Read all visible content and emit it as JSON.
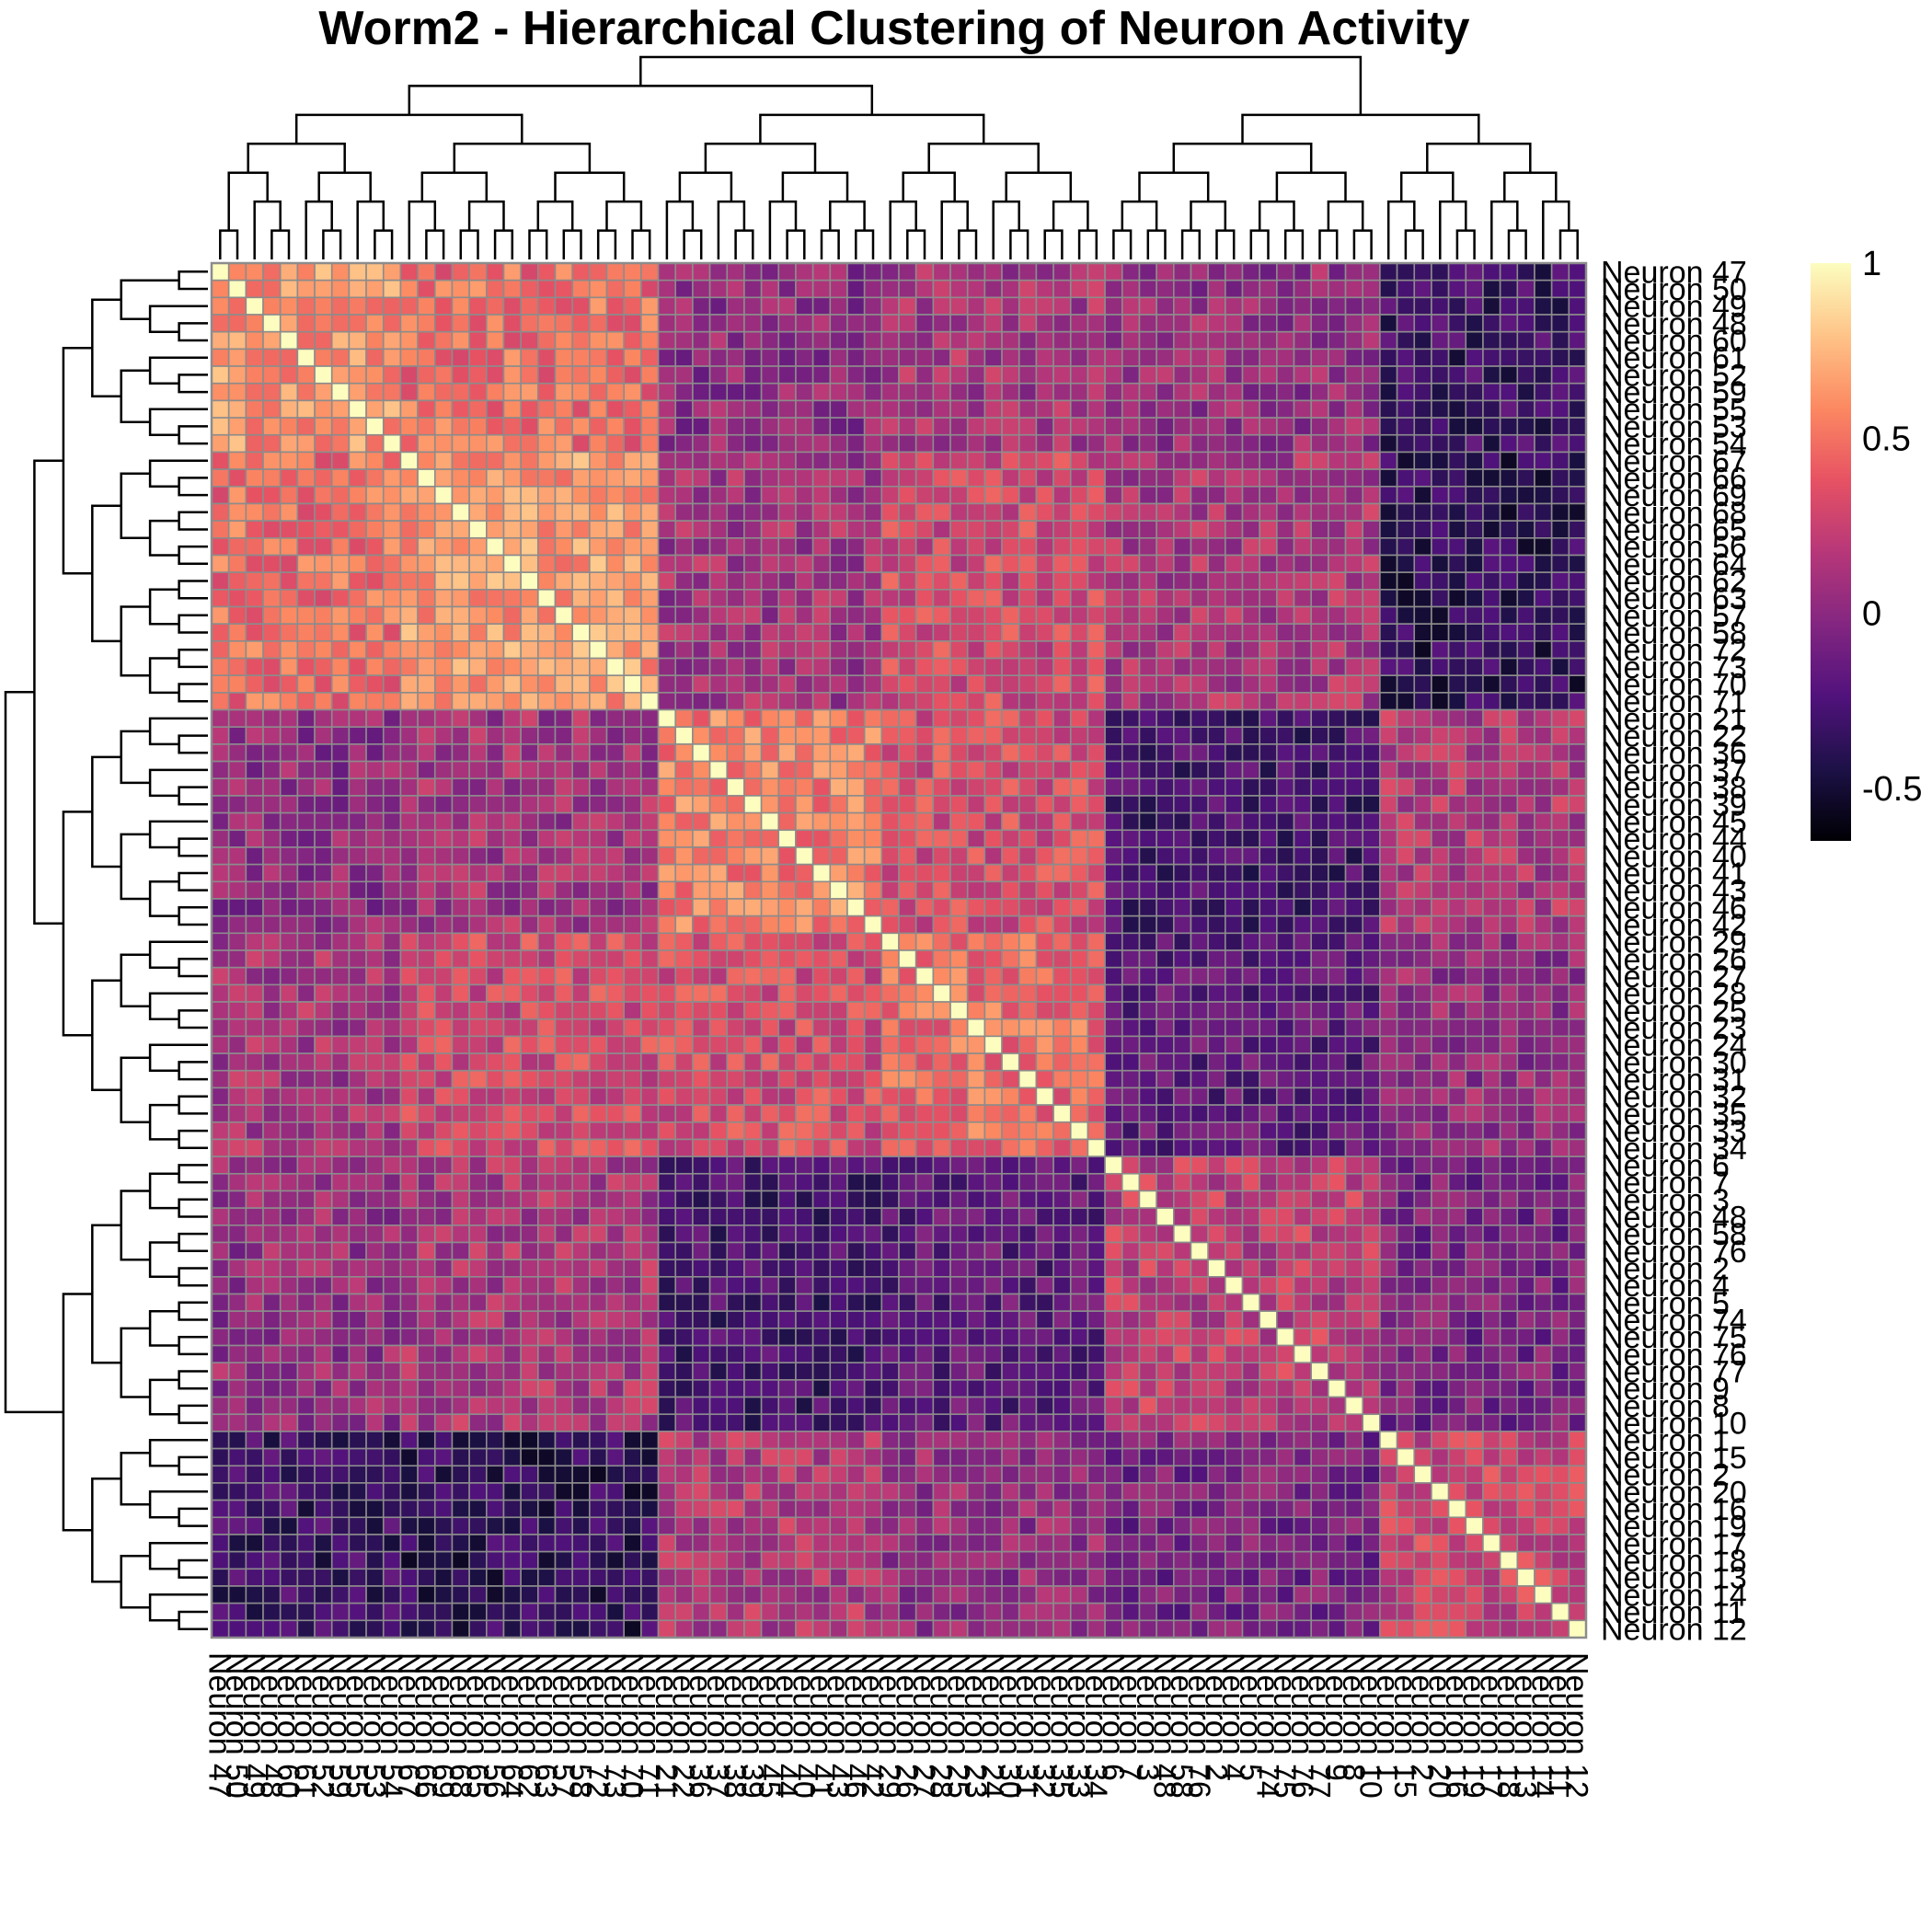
{
  "chart_data": {
    "type": "heatmap",
    "title": "Worm2 - Hierarchical Clustering of Neuron Activity",
    "row_labels": [
      "Neuron 47",
      "Neuron 50",
      "Neuron 49",
      "Neuron 48",
      "Neuron 60",
      "Neuron 61",
      "Neuron 52",
      "Neuron 59",
      "Neuron 55",
      "Neuron 53",
      "Neuron 54",
      "Neuron 67",
      "Neuron 66",
      "Neuron 69",
      "Neuron 68",
      "Neuron 65",
      "Neuron 56",
      "Neuron 64",
      "Neuron 62",
      "Neuron 63",
      "Neuron 57",
      "Neuron 58",
      "Neuron 72",
      "Neuron 73",
      "Neuron 70",
      "Neuron 71",
      "Neuron 21",
      "Neuron 22",
      "Neuron 36",
      "Neuron 37",
      "Neuron 38",
      "Neuron 39",
      "Neuron 45",
      "Neuron 44",
      "Neuron 40",
      "Neuron 41",
      "Neuron 43",
      "Neuron 46",
      "Neuron 42",
      "Neuron 29",
      "Neuron 26",
      "Neuron 27",
      "Neuron 28",
      "Neuron 25",
      "Neuron 23",
      "Neuron 24",
      "Neuron 30",
      "Neuron 31",
      "Neuron 32",
      "Neuron 35",
      "Neuron 33",
      "Neuron 34",
      "Neuron 6",
      "Neuron 7",
      "Neuron 3",
      "Neuron 48",
      "Neuron 58",
      "Neuron 76",
      "Neuron 2",
      "Neuron 4",
      "Neuron 5",
      "Neuron 74",
      "Neuron 75",
      "Neuron 76",
      "Neuron 77",
      "Neuron 9",
      "Neuron 8",
      "Neuron 10",
      "Neuron 1",
      "Neuron 15",
      "Neuron 2",
      "Neuron 20",
      "Neuron 16",
      "Neuron 19",
      "Neuron 17",
      "Neuron 18",
      "Neuron 13",
      "Neuron 14",
      "Neuron 11",
      "Neuron 12"
    ],
    "col_labels": [
      "Neuron 47",
      "Neuron 50",
      "Neuron 49",
      "Neuron 48",
      "Neuron 60",
      "Neuron 61",
      "Neuron 52",
      "Neuron 59",
      "Neuron 55",
      "Neuron 53",
      "Neuron 54",
      "Neuron 67",
      "Neuron 66",
      "Neuron 69",
      "Neuron 68",
      "Neuron 65",
      "Neuron 56",
      "Neuron 64",
      "Neuron 62",
      "Neuron 63",
      "Neuron 57",
      "Neuron 58",
      "Neuron 72",
      "Neuron 73",
      "Neuron 70",
      "Neuron 71",
      "Neuron 21",
      "Neuron 22",
      "Neuron 36",
      "Neuron 37",
      "Neuron 38",
      "Neuron 39",
      "Neuron 45",
      "Neuron 44",
      "Neuron 40",
      "Neuron 41",
      "Neuron 43",
      "Neuron 46",
      "Neuron 42",
      "Neuron 29",
      "Neuron 26",
      "Neuron 27",
      "Neuron 28",
      "Neuron 25",
      "Neuron 23",
      "Neuron 24",
      "Neuron 30",
      "Neuron 31",
      "Neuron 32",
      "Neuron 35",
      "Neuron 33",
      "Neuron 34",
      "Neuron 6",
      "Neuron 7",
      "Neuron 3",
      "Neuron 48",
      "Neuron 58",
      "Neuron 76",
      "Neuron 2",
      "Neuron 4",
      "Neuron 5",
      "Neuron 74",
      "Neuron 75",
      "Neuron 76",
      "Neuron 77",
      "Neuron 9",
      "Neuron 8",
      "Neuron 10",
      "Neuron 1",
      "Neuron 15",
      "Neuron 2",
      "Neuron 20",
      "Neuron 16",
      "Neuron 19",
      "Neuron 17",
      "Neuron 18",
      "Neuron 13",
      "Neuron 14",
      "Neuron 11",
      "Neuron 12"
    ],
    "blocks": [
      {
        "from": 1,
        "to": 11
      },
      {
        "from": 12,
        "to": 26
      },
      {
        "from": 27,
        "to": 39
      },
      {
        "from": 40,
        "to": 52
      },
      {
        "from": 53,
        "to": 68
      },
      {
        "from": 69,
        "to": 80
      }
    ],
    "block_means": [
      [
        0.62,
        0.48,
        0.02,
        0.12,
        0.05,
        -0.32
      ],
      [
        0.48,
        0.64,
        0.1,
        0.3,
        0.14,
        -0.38
      ],
      [
        0.02,
        0.1,
        0.55,
        0.32,
        -0.28,
        0.16
      ],
      [
        0.12,
        0.3,
        0.32,
        0.48,
        -0.18,
        0.04
      ],
      [
        0.05,
        0.14,
        -0.28,
        -0.18,
        0.22,
        -0.08
      ],
      [
        -0.32,
        -0.38,
        0.16,
        0.04,
        -0.08,
        0.26
      ]
    ],
    "value_range": [
      -0.65,
      1
    ],
    "diagonal_value": 1,
    "colorbar": {
      "ticks": [
        1,
        0.5,
        0,
        -0.5
      ],
      "tick_labels": [
        "1",
        "0.5",
        "0",
        "-0.5"
      ]
    },
    "colormap": [
      "#000004",
      "#1d1147",
      "#51127c",
      "#832681",
      "#b73779",
      "#e75263",
      "#fc8961",
      "#fec488",
      "#fcfdbf"
    ],
    "dendrogram": "rows and columns, same ordering"
  }
}
